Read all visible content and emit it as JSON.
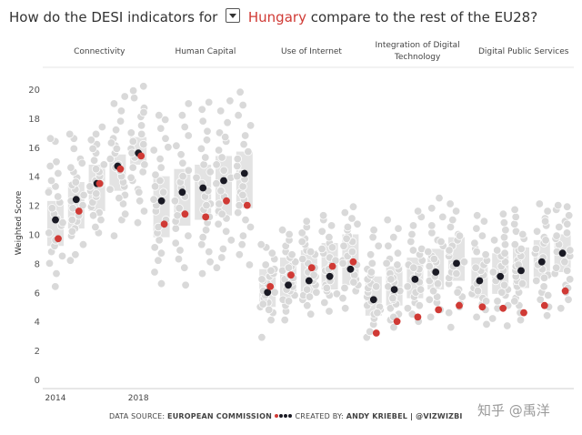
{
  "title": {
    "prefix": "How do the DESI indicators for",
    "country": "Hungary",
    "suffix": "compare to the rest of the EU28?"
  },
  "colors": {
    "country": "#d03a35",
    "eu_average": "#1a1a24",
    "other_countries": "#d8d8d8",
    "box": "#e3e3e3"
  },
  "chart_data": {
    "type": "scatter",
    "subtype": "jittered strip plot with interquartile boxes, small multiples",
    "ylabel": "Weighted Score",
    "ylim": [
      0,
      20
    ],
    "yticks": [
      0,
      2,
      4,
      6,
      8,
      10,
      12,
      14,
      16,
      18,
      20
    ],
    "x_tick_labels": [
      "2014",
      "2018"
    ],
    "years": [
      2014,
      2015,
      2016,
      2017,
      2018
    ],
    "grid": false,
    "series": [
      {
        "name": "Connectivity",
        "eu_average": [
          11.0,
          12.4,
          13.5,
          14.7,
          15.6
        ],
        "country": [
          9.7,
          11.6,
          13.5,
          14.5,
          15.4
        ],
        "box_q1": [
          9.2,
          10.4,
          11.6,
          13.0,
          14.8
        ],
        "box_q3": [
          12.3,
          13.6,
          14.8,
          15.5,
          16.7
        ],
        "others": [
          [
            6.4,
            7.3,
            8.0,
            8.8,
            9.2,
            9.6,
            10.1,
            10.6,
            11.1,
            11.4,
            11.8,
            12.2,
            12.6,
            13.0,
            13.3,
            13.7,
            14.2,
            14.7,
            15.0,
            16.4,
            16.6,
            12.9,
            8.5,
            10.8
          ],
          [
            8.2,
            8.6,
            9.3,
            9.9,
            10.4,
            10.9,
            11.3,
            11.8,
            12.3,
            12.7,
            13.1,
            13.4,
            13.9,
            14.3,
            14.6,
            15.2,
            15.9,
            16.6,
            16.9,
            12.0,
            10.2,
            14.9,
            13.6,
            11.0
          ],
          [
            10.1,
            10.5,
            11.0,
            11.5,
            11.9,
            12.2,
            12.6,
            13.0,
            13.3,
            13.7,
            14.0,
            14.3,
            14.8,
            15.1,
            15.6,
            16.2,
            16.9,
            17.4,
            12.8,
            14.5,
            11.3,
            15.9,
            13.5,
            16.5
          ],
          [
            9.9,
            11.0,
            12.1,
            12.7,
            13.3,
            13.6,
            14.0,
            14.4,
            14.8,
            15.2,
            15.6,
            16.1,
            16.6,
            17.2,
            17.8,
            18.5,
            19.0,
            19.5,
            13.1,
            14.6,
            12.5,
            15.9,
            16.3,
            11.4
          ],
          [
            10.8,
            11.6,
            12.3,
            13.1,
            13.7,
            14.3,
            14.8,
            15.3,
            15.9,
            16.4,
            16.9,
            17.5,
            18.1,
            18.7,
            19.4,
            20.2,
            19.9,
            17.0,
            15.6,
            13.9,
            12.9,
            16.2,
            18.4,
            14.6
          ]
        ]
      },
      {
        "name": "Human Capital",
        "eu_average": [
          12.3,
          12.9,
          13.2,
          13.7,
          14.2
        ],
        "country": [
          10.7,
          11.4,
          11.2,
          12.3,
          12.0
        ],
        "box_q1": [
          9.8,
          10.6,
          11.0,
          11.3,
          11.8
        ],
        "box_q3": [
          14.0,
          14.5,
          14.8,
          15.4,
          15.7
        ],
        "others": [
          [
            6.6,
            7.4,
            8.2,
            8.7,
            9.1,
            9.6,
            10.1,
            10.5,
            11.0,
            11.6,
            12.0,
            12.4,
            12.9,
            13.3,
            13.7,
            14.1,
            14.6,
            15.2,
            15.8,
            16.6,
            17.3,
            17.9,
            18.2,
            16.0
          ],
          [
            6.5,
            7.7,
            8.3,
            8.9,
            9.4,
            9.9,
            10.4,
            10.9,
            11.3,
            11.8,
            12.3,
            12.7,
            13.2,
            13.6,
            14.0,
            14.4,
            14.9,
            15.5,
            16.1,
            16.8,
            17.4,
            18.2,
            19.0,
            12.6
          ],
          [
            7.3,
            8.1,
            8.8,
            9.3,
            9.8,
            10.3,
            10.8,
            11.2,
            11.7,
            12.1,
            12.6,
            13.0,
            13.5,
            13.9,
            14.3,
            14.8,
            15.3,
            15.9,
            16.5,
            17.1,
            17.8,
            18.6,
            19.1,
            12.0
          ],
          [
            7.7,
            8.4,
            9.0,
            9.6,
            10.2,
            10.7,
            11.1,
            11.6,
            12.1,
            12.6,
            13.0,
            13.5,
            13.9,
            14.4,
            14.8,
            15.3,
            15.8,
            16.4,
            17.0,
            17.7,
            18.5,
            19.2,
            16.7,
            11.4
          ],
          [
            7.9,
            8.6,
            9.3,
            9.9,
            10.5,
            11.0,
            11.5,
            12.0,
            12.4,
            12.9,
            13.3,
            13.8,
            14.2,
            14.7,
            15.2,
            15.7,
            16.2,
            16.8,
            17.5,
            18.2,
            18.9,
            19.8,
            12.7,
            14.0
          ]
        ]
      },
      {
        "name": "Use of Internet",
        "eu_average": [
          6.0,
          6.5,
          6.8,
          7.1,
          7.6
        ],
        "country": [
          6.4,
          7.2,
          7.7,
          7.8,
          8.1
        ],
        "box_q1": [
          5.0,
          5.6,
          5.9,
          6.2,
          6.5
        ],
        "box_q3": [
          7.6,
          8.4,
          8.9,
          9.4,
          10.0
        ],
        "others": [
          [
            2.9,
            4.1,
            4.6,
            5.0,
            5.3,
            5.6,
            5.8,
            6.1,
            6.3,
            6.6,
            6.8,
            7.1,
            7.3,
            7.6,
            7.9,
            8.3,
            8.7,
            9.1,
            9.3,
            5.2,
            6.9,
            7.5,
            4.8,
            6.0
          ],
          [
            4.1,
            4.7,
            5.1,
            5.5,
            5.8,
            6.1,
            6.4,
            6.7,
            6.9,
            7.2,
            7.5,
            7.8,
            8.1,
            8.4,
            8.8,
            9.2,
            9.6,
            10.0,
            10.3,
            6.2,
            7.0,
            8.6,
            5.4,
            7.7
          ],
          [
            4.5,
            5.1,
            5.5,
            5.8,
            6.2,
            6.5,
            6.8,
            7.1,
            7.4,
            7.7,
            8.0,
            8.3,
            8.6,
            8.9,
            9.3,
            9.7,
            10.1,
            10.5,
            10.9,
            6.0,
            7.2,
            8.8,
            5.7,
            9.5
          ],
          [
            4.7,
            5.3,
            5.8,
            6.1,
            6.5,
            6.8,
            7.2,
            7.5,
            7.8,
            8.1,
            8.4,
            8.7,
            9.0,
            9.4,
            9.8,
            10.2,
            10.6,
            11.0,
            11.3,
            6.3,
            7.6,
            9.1,
            5.9,
            8.2
          ],
          [
            4.9,
            5.6,
            6.1,
            6.5,
            6.9,
            7.2,
            7.6,
            7.9,
            8.2,
            8.5,
            8.8,
            9.2,
            9.5,
            9.9,
            10.3,
            10.7,
            11.1,
            11.5,
            11.9,
            6.7,
            8.0,
            9.7,
            6.3,
            10.5
          ]
        ]
      },
      {
        "name": "Integration of Digital Technology",
        "eu_average": [
          5.5,
          6.2,
          6.9,
          7.4,
          8.0
        ],
        "country": [
          3.2,
          4.0,
          4.3,
          4.8,
          5.1
        ],
        "box_q1": [
          4.4,
          5.1,
          5.6,
          6.2,
          6.8
        ],
        "box_q3": [
          7.1,
          7.8,
          8.4,
          9.0,
          9.8
        ],
        "others": [
          [
            2.9,
            3.3,
            3.8,
            4.2,
            4.5,
            4.8,
            5.1,
            5.4,
            5.7,
            6.0,
            6.3,
            6.6,
            6.9,
            7.2,
            7.6,
            8.0,
            8.6,
            9.2,
            9.8,
            10.3,
            5.0,
            6.4,
            7.4,
            4.6
          ],
          [
            3.6,
            4.1,
            4.5,
            4.9,
            5.2,
            5.5,
            5.8,
            6.1,
            6.4,
            6.7,
            7.0,
            7.3,
            7.6,
            7.9,
            8.3,
            8.7,
            9.2,
            9.8,
            10.4,
            11.0,
            5.6,
            6.9,
            8.0,
            4.3
          ],
          [
            4.0,
            4.5,
            4.9,
            5.3,
            5.7,
            6.0,
            6.4,
            6.7,
            7.0,
            7.3,
            7.6,
            7.9,
            8.2,
            8.6,
            9.0,
            9.5,
            10.0,
            10.6,
            11.2,
            11.6,
            6.2,
            7.7,
            8.9,
            5.1
          ],
          [
            4.3,
            4.8,
            5.3,
            5.7,
            6.1,
            6.5,
            6.8,
            7.1,
            7.5,
            7.8,
            8.1,
            8.5,
            8.8,
            9.2,
            9.6,
            10.1,
            10.6,
            11.2,
            11.8,
            12.5,
            6.6,
            8.3,
            9.5,
            5.5
          ],
          [
            3.6,
            4.6,
            5.2,
            5.7,
            6.2,
            6.6,
            7.0,
            7.4,
            7.8,
            8.1,
            8.5,
            8.8,
            9.2,
            9.6,
            10.0,
            10.5,
            11.0,
            11.6,
            12.1,
            7.3,
            8.9,
            6.0,
            9.9,
            5.0
          ]
        ]
      },
      {
        "name": "Digital Public Services",
        "eu_average": [
          6.8,
          7.1,
          7.5,
          8.1,
          8.7
        ],
        "country": [
          5.0,
          4.9,
          4.6,
          5.1,
          6.1
        ],
        "box_q1": [
          5.6,
          5.9,
          6.3,
          6.9,
          7.4
        ],
        "box_q3": [
          8.4,
          8.7,
          9.1,
          9.6,
          10.0
        ],
        "others": [
          [
            3.8,
            4.3,
            4.8,
            5.2,
            5.6,
            5.9,
            6.3,
            6.6,
            6.9,
            7.2,
            7.5,
            7.9,
            8.2,
            8.6,
            9.0,
            9.4,
            9.9,
            10.4,
            10.9,
            11.3,
            6.1,
            7.7,
            8.8,
            5.4
          ],
          [
            3.7,
            4.2,
            4.9,
            5.4,
            5.8,
            6.2,
            6.5,
            6.8,
            7.2,
            7.5,
            7.8,
            8.1,
            8.5,
            8.9,
            9.3,
            9.8,
            10.3,
            10.8,
            11.4,
            6.0,
            7.4,
            8.7,
            5.1,
            9.6
          ],
          [
            4.1,
            4.6,
            5.1,
            5.6,
            6.0,
            6.4,
            6.8,
            7.1,
            7.5,
            7.8,
            8.2,
            8.5,
            8.9,
            9.3,
            9.7,
            10.2,
            10.7,
            11.2,
            11.7,
            6.6,
            7.9,
            9.0,
            5.4,
            10.0
          ],
          [
            4.4,
            5.0,
            5.5,
            6.0,
            6.4,
            6.8,
            7.2,
            7.6,
            7.9,
            8.3,
            8.7,
            9.0,
            9.4,
            9.8,
            10.2,
            10.6,
            11.1,
            11.6,
            12.1,
            7.0,
            8.4,
            9.6,
            5.8,
            10.9
          ],
          [
            4.9,
            5.5,
            6.0,
            6.5,
            6.9,
            7.3,
            7.7,
            8.1,
            8.5,
            8.9,
            9.3,
            9.7,
            10.1,
            10.5,
            10.9,
            11.3,
            11.7,
            12.0,
            7.5,
            8.8,
            9.9,
            6.3,
            10.7,
            11.9
          ]
        ]
      }
    ]
  },
  "footer": {
    "source_label": "DATA SOURCE:",
    "source_value": "EUROPEAN COMMISSION",
    "legend_dot_colors": [
      "#d03a35",
      "#1a1a24",
      "#1a1a24",
      "#1a1a24"
    ],
    "created_label": "CREATED BY:",
    "created_value": "ANDY KRIEBEL | @VIZWIZBI"
  },
  "watermark": "知乎 @禹洋"
}
